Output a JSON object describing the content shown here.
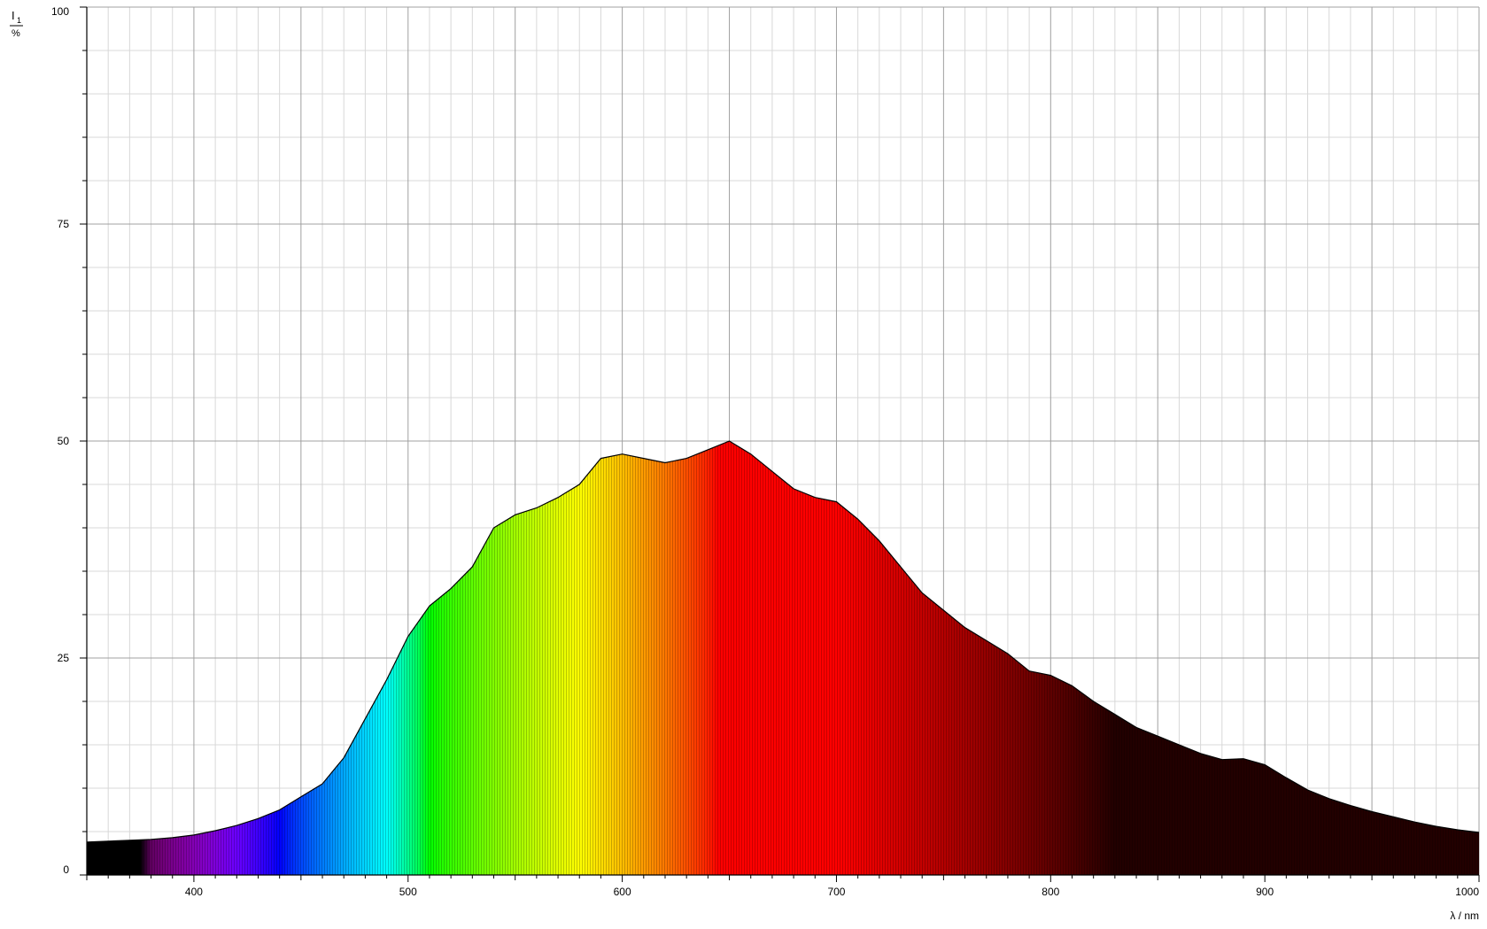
{
  "chart_data": {
    "type": "area",
    "title": "",
    "ylabel_numerator": "I",
    "ylabel_subscript": "1",
    "ylabel_unit": "%",
    "xlabel": "λ / nm",
    "xlim": [
      350,
      1000
    ],
    "ylim": [
      0,
      100
    ],
    "x_ticks": [
      400,
      500,
      600,
      700,
      800,
      900,
      1000
    ],
    "y_ticks": [
      0,
      25,
      50,
      75,
      100
    ],
    "x_minor_step": 10,
    "y_minor_step": 5,
    "grid": true,
    "fill": "wavelength-spectrum",
    "colors": {
      "major_grid": "#a0a0a0",
      "minor_grid": "#d8d8d8",
      "axis": "#000000",
      "outline": "#000000"
    },
    "series": [
      {
        "x": [
          350,
          360,
          370,
          380,
          390,
          400,
          410,
          420,
          430,
          440,
          450,
          460,
          470,
          480,
          490,
          500,
          510,
          520,
          530,
          540,
          550,
          560,
          570,
          580,
          590,
          600,
          610,
          620,
          630,
          640,
          650,
          660,
          670,
          680,
          690,
          700,
          710,
          720,
          730,
          740,
          750,
          760,
          770,
          780,
          790,
          800,
          810,
          820,
          830,
          840,
          850,
          860,
          870,
          880,
          890,
          900,
          910,
          920,
          930,
          940,
          950,
          960,
          970,
          980,
          990,
          1000
        ],
        "values": [
          3.8,
          3.9,
          4.0,
          4.1,
          4.3,
          4.6,
          5.1,
          5.7,
          6.5,
          7.5,
          9.0,
          10.5,
          13.5,
          18.0,
          22.5,
          27.5,
          31.0,
          33.0,
          35.5,
          40.0,
          41.5,
          42.3,
          43.5,
          45.0,
          48.0,
          48.5,
          48.0,
          47.5,
          48.0,
          49.0,
          50.0,
          48.5,
          46.5,
          44.5,
          43.5,
          43.0,
          41.0,
          38.5,
          35.5,
          32.5,
          30.5,
          28.5,
          27.0,
          25.5,
          23.5,
          23.0,
          21.8,
          20.0,
          18.5,
          17.0,
          16.0,
          15.0,
          14.0,
          13.3,
          13.4,
          12.7,
          11.2,
          9.8,
          8.8,
          8.0,
          7.3,
          6.7,
          6.1,
          5.6,
          5.2,
          4.9
        ]
      }
    ]
  }
}
